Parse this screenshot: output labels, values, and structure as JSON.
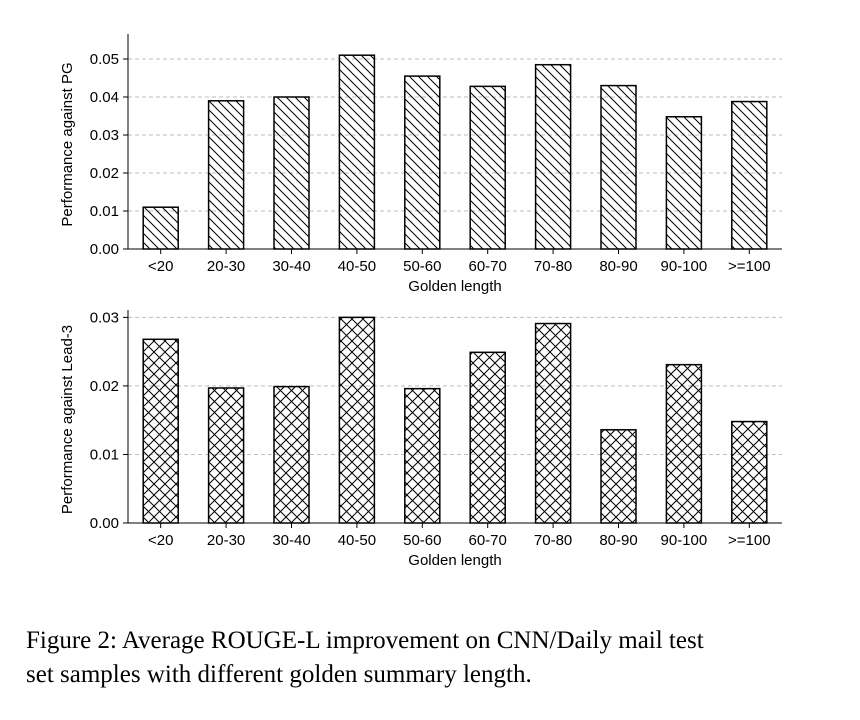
{
  "chart_data": [
    {
      "type": "bar",
      "categories": [
        "<20",
        "20-30",
        "30-40",
        "40-50",
        "50-60",
        "60-70",
        "70-80",
        "80-90",
        "90-100",
        ">=100"
      ],
      "values": [
        0.011,
        0.039,
        0.04,
        0.051,
        0.0455,
        0.0428,
        0.0485,
        0.043,
        0.0348,
        0.0388
      ],
      "xlabel": "Golden length",
      "ylabel": "Performance against PG",
      "ylim": [
        0,
        0.055
      ],
      "yticks": [
        0.0,
        0.01,
        0.02,
        0.03,
        0.04,
        0.05
      ],
      "ytick_labels": [
        "0.00",
        "0.01",
        "0.02",
        "0.03",
        "0.04",
        "0.05"
      ],
      "grid": true,
      "pattern": "diagonal-hatch"
    },
    {
      "type": "bar",
      "categories": [
        "<20",
        "20-30",
        "30-40",
        "40-50",
        "50-60",
        "60-70",
        "70-80",
        "80-90",
        "90-100",
        ">=100"
      ],
      "values": [
        0.0268,
        0.0197,
        0.0199,
        0.03,
        0.0196,
        0.0249,
        0.0291,
        0.0136,
        0.0231,
        0.0148
      ],
      "xlabel": "Golden length",
      "ylabel": "Performance against Lead-3",
      "ylim": [
        0,
        0.0302
      ],
      "yticks": [
        0.0,
        0.01,
        0.02,
        0.03
      ],
      "ytick_labels": [
        "0.00",
        "0.01",
        "0.02",
        "0.03"
      ],
      "grid": true,
      "pattern": "cross-hatch"
    }
  ],
  "caption": {
    "line1": "Figure 2: Average ROUGE-L improvement on CNN/Daily mail test",
    "line2": "set samples with different golden summary length."
  }
}
